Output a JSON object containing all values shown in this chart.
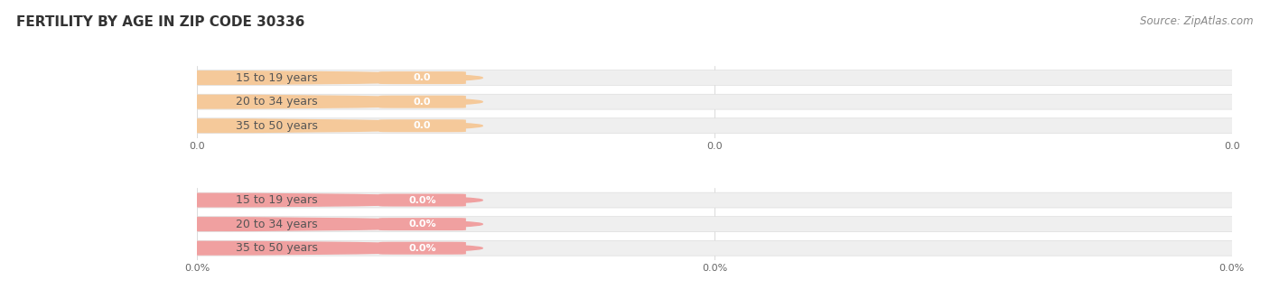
{
  "title": "FERTILITY BY AGE IN ZIP CODE 30336",
  "source_text": "Source: ZipAtlas.com",
  "top_section": {
    "categories": [
      "15 to 19 years",
      "20 to 34 years",
      "35 to 50 years"
    ],
    "values": [
      0.0,
      0.0,
      0.0
    ],
    "bar_bg_color": "#efefef",
    "bar_fill_color": "#f5c99a",
    "label_color": "#555555",
    "value_label_color": "#ffffff",
    "xtick_positions": [
      0.0,
      0.5,
      1.0
    ],
    "xtick_labels": [
      "0.0",
      "0.0",
      "0.0"
    ]
  },
  "bottom_section": {
    "categories": [
      "15 to 19 years",
      "20 to 34 years",
      "35 to 50 years"
    ],
    "values": [
      0.0,
      0.0,
      0.0
    ],
    "bar_bg_color": "#efefef",
    "bar_fill_color": "#f0a0a0",
    "label_color": "#555555",
    "value_label_color": "#ffffff",
    "xtick_positions": [
      0.0,
      0.5,
      1.0
    ],
    "xtick_labels": [
      "0.0%",
      "0.0%",
      "0.0%"
    ]
  },
  "bg_color": "#ffffff",
  "bar_height": 0.6,
  "title_fontsize": 11,
  "label_fontsize": 9,
  "value_fontsize": 8,
  "tick_fontsize": 8,
  "source_fontsize": 8.5
}
